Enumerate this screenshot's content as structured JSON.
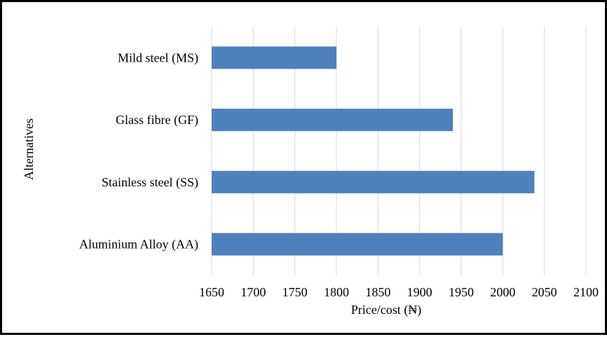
{
  "chart_data": {
    "type": "bar",
    "orientation": "horizontal",
    "categories": [
      "Mild steel (MS)",
      "Glass fibre (GF)",
      "Stainless steel (SS)",
      "Aluminium Alloy (AA)"
    ],
    "values": [
      1800,
      1940,
      2038,
      2000
    ],
    "xlabel": "Price/cost (₦)",
    "ylabel": "Alternatives",
    "xlim": [
      1650,
      2100
    ],
    "xticks": [
      "1650",
      "1700",
      "1750",
      "1800",
      "1850",
      "1900",
      "1950",
      "2000",
      "2050",
      "2100"
    ],
    "grid": true,
    "legend": "none",
    "colors": {
      "bar": "#4f81bd",
      "grid": "#d9d9d9",
      "text": "#000000",
      "border": "#000000"
    }
  }
}
